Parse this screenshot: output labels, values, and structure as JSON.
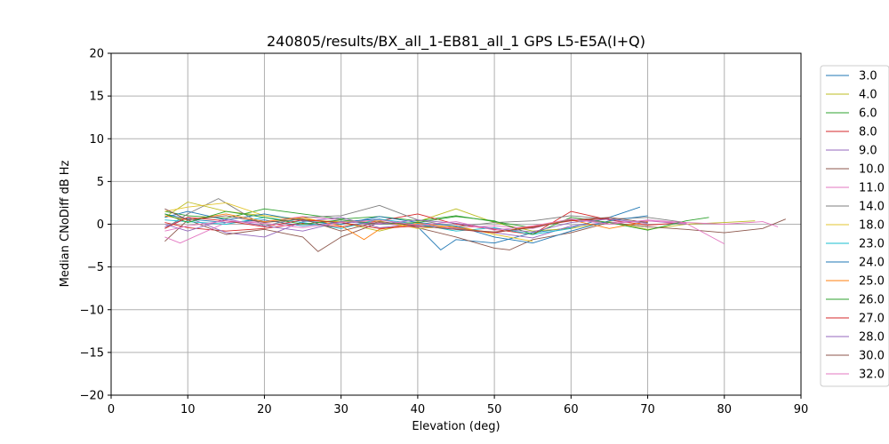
{
  "chart_data": {
    "type": "line",
    "title": "240805/results/BX_all_1-EB81_all_1 GPS L5-E5A(I+Q)",
    "xlabel": "Elevation (deg)",
    "ylabel": "Median CNoDiff dB Hz",
    "xlim": [
      0,
      90
    ],
    "ylim": [
      -20,
      20
    ],
    "x_ticks": [
      "0",
      "10",
      "20",
      "30",
      "40",
      "50",
      "60",
      "70",
      "80",
      "90"
    ],
    "y_ticks": [
      "20",
      "15",
      "10",
      "5",
      "0",
      "−5",
      "−10",
      "−15",
      "−20"
    ],
    "grid": true,
    "legend_position": "right, outside plot",
    "series": [
      {
        "name": "3.0",
        "color": "#1f77b4",
        "x": [
          7,
          10,
          15,
          20,
          25,
          30,
          35,
          40,
          43,
          45,
          50,
          55,
          60,
          65,
          69
        ],
        "y": [
          1.2,
          0.6,
          0.2,
          0.5,
          -0.2,
          0.3,
          0.6,
          -0.3,
          -3.0,
          -1.8,
          -2.2,
          -1.0,
          -0.4,
          0.8,
          2.0
        ]
      },
      {
        "name": "4.0",
        "color": "#bcbd22",
        "x": [
          7,
          10,
          15,
          20,
          25,
          30,
          35,
          40,
          45,
          50,
          55,
          60,
          65,
          70,
          75,
          80,
          84
        ],
        "y": [
          0.8,
          2.6,
          1.5,
          1.0,
          0.6,
          0.2,
          -0.8,
          0.3,
          1.8,
          0.2,
          -0.8,
          -0.5,
          0.3,
          -0.6,
          0.0,
          0.2,
          0.4
        ]
      },
      {
        "name": "6.0",
        "color": "#2ca02c",
        "x": [
          7,
          10,
          15,
          20,
          25,
          30,
          35,
          40,
          45,
          50,
          55,
          60,
          65,
          70
        ],
        "y": [
          1.5,
          1.0,
          0.7,
          1.8,
          1.2,
          0.6,
          0.9,
          0.4,
          1.0,
          0.3,
          -0.4,
          0.5,
          0.2,
          -0.3
        ]
      },
      {
        "name": "8.0",
        "color": "#d62728",
        "x": [
          7,
          10,
          15,
          20,
          25,
          30,
          35,
          40,
          45,
          50,
          55,
          60,
          65,
          70,
          75
        ],
        "y": [
          0.2,
          -0.4,
          -0.8,
          -0.5,
          0.1,
          -0.3,
          0.4,
          1.2,
          0.0,
          -0.6,
          -1.2,
          1.5,
          0.5,
          -0.1,
          0.2
        ]
      },
      {
        "name": "9.0",
        "color": "#9467bd",
        "x": [
          7,
          10,
          15,
          20,
          25,
          30,
          35,
          40,
          45,
          50,
          55,
          60,
          65,
          70,
          75
        ],
        "y": [
          -0.3,
          0.8,
          -1.0,
          -1.5,
          0.3,
          0.8,
          -0.4,
          0.0,
          -0.5,
          -1.0,
          -1.6,
          -0.2,
          0.2,
          0.4,
          0.0
        ]
      },
      {
        "name": "10.0",
        "color": "#8c564b",
        "x": [
          7,
          10,
          15,
          20,
          25,
          27,
          30,
          35,
          40,
          45,
          50,
          52,
          55,
          60,
          65,
          70,
          75,
          80,
          85,
          88
        ],
        "y": [
          -2.0,
          0.5,
          -1.2,
          -0.6,
          -1.5,
          -3.2,
          -1.5,
          0.2,
          -0.4,
          -1.5,
          -2.8,
          -3.0,
          -1.8,
          -1.0,
          0.2,
          -0.3,
          -0.6,
          -1.0,
          -0.5,
          0.6
        ]
      },
      {
        "name": "11.0",
        "color": "#e377c2",
        "x": [
          7,
          9,
          15,
          20,
          25,
          30,
          35,
          40,
          45,
          50,
          55,
          60,
          65,
          70,
          75,
          80
        ],
        "y": [
          -1.5,
          -2.2,
          0.2,
          0.3,
          0.9,
          0.5,
          0.1,
          -0.3,
          -0.4,
          -0.2,
          -0.5,
          0.6,
          0.2,
          0.4,
          0.1,
          -2.3
        ]
      },
      {
        "name": "14.0",
        "color": "#7f7f7f",
        "x": [
          7,
          10,
          14,
          20,
          25,
          30,
          35,
          40,
          45,
          50,
          55,
          60,
          65,
          70,
          75
        ],
        "y": [
          -0.5,
          1.2,
          3.0,
          -0.2,
          0.8,
          1.0,
          2.2,
          0.5,
          -0.3,
          0.2,
          0.4,
          1.0,
          0.6,
          0.8,
          0.2
        ]
      },
      {
        "name": "18.0",
        "color": "#e3c62f",
        "x": [
          7,
          10,
          15,
          20,
          25,
          30,
          35,
          40,
          45,
          50,
          55
        ],
        "y": [
          1.5,
          2.0,
          2.5,
          1.0,
          0.5,
          0.3,
          0.4,
          -0.5,
          -0.2,
          -1.2,
          -2.0
        ]
      },
      {
        "name": "23.0",
        "color": "#17becf",
        "x": [
          7,
          10,
          15,
          20,
          25,
          30,
          35,
          40,
          45,
          50,
          55,
          60
        ],
        "y": [
          0.5,
          0.3,
          0.0,
          0.8,
          0.2,
          -0.5,
          0.6,
          0.0,
          -0.8,
          -0.4,
          -1.2,
          -0.5
        ]
      },
      {
        "name": "24.0",
        "color": "#1f77b4",
        "x": [
          7,
          10,
          15,
          20,
          25,
          30,
          35,
          40,
          45,
          50,
          55,
          60,
          65,
          70
        ],
        "y": [
          0.8,
          1.5,
          0.5,
          1.2,
          0.4,
          0.0,
          0.9,
          0.2,
          -0.2,
          -1.5,
          -2.2,
          -0.8,
          0.4,
          1.0
        ]
      },
      {
        "name": "25.0",
        "color": "#ff7f0e",
        "x": [
          7,
          10,
          15,
          20,
          25,
          30,
          33,
          35,
          40,
          45,
          50,
          55,
          60,
          65,
          70
        ],
        "y": [
          1.0,
          0.5,
          1.2,
          0.3,
          0.8,
          -0.2,
          -1.8,
          -0.6,
          0.1,
          -0.4,
          -1.0,
          -0.2,
          0.5,
          -0.5,
          0.3
        ]
      },
      {
        "name": "26.0",
        "color": "#2ca02c",
        "x": [
          7,
          10,
          15,
          20,
          25,
          30,
          35,
          40,
          45,
          50,
          55,
          60,
          65,
          70,
          75,
          78
        ],
        "y": [
          1.2,
          0.2,
          1.5,
          0.8,
          0.0,
          0.5,
          0.0,
          0.2,
          0.9,
          0.4,
          -1.2,
          0.8,
          0.2,
          -0.7,
          0.4,
          0.8
        ]
      },
      {
        "name": "27.0",
        "color": "#d62728",
        "x": [
          7,
          10,
          15,
          20,
          25,
          30,
          35,
          40,
          45,
          50,
          55,
          60,
          65
        ],
        "y": [
          -0.5,
          0.8,
          0.4,
          -0.3,
          0.5,
          0.2,
          -0.5,
          -0.2,
          -0.6,
          -1.0,
          -0.3,
          0.4,
          0.7
        ]
      },
      {
        "name": "28.0",
        "color": "#9467bd",
        "x": [
          7,
          10,
          15,
          20,
          25,
          30,
          35,
          40,
          45,
          50,
          55,
          60,
          65,
          70
        ],
        "y": [
          0.0,
          -0.8,
          0.6,
          -0.2,
          -0.8,
          0.3,
          0.0,
          0.5,
          0.1,
          -0.5,
          -0.9,
          0.2,
          0.6,
          0.1
        ]
      },
      {
        "name": "30.0",
        "color": "#8c564b",
        "x": [
          7,
          10,
          15,
          20,
          25,
          30,
          35,
          40,
          45,
          50,
          55,
          60,
          65,
          70
        ],
        "y": [
          1.8,
          0.5,
          1.0,
          0.2,
          0.6,
          -0.8,
          0.3,
          -0.2,
          -0.6,
          -0.9,
          -0.4,
          0.5,
          0.8,
          0.2
        ]
      },
      {
        "name": "32.0",
        "color": "#e377c2",
        "x": [
          7,
          10,
          15,
          20,
          25,
          30,
          35,
          40,
          45,
          50,
          55,
          60,
          65,
          70,
          75,
          80,
          85,
          87
        ],
        "y": [
          -0.8,
          -0.2,
          0.4,
          0.1,
          -0.4,
          0.2,
          0.5,
          -0.1,
          0.3,
          -0.7,
          -0.2,
          0.6,
          0.0,
          0.5,
          0.2,
          0.0,
          0.3,
          -0.3
        ]
      }
    ]
  }
}
